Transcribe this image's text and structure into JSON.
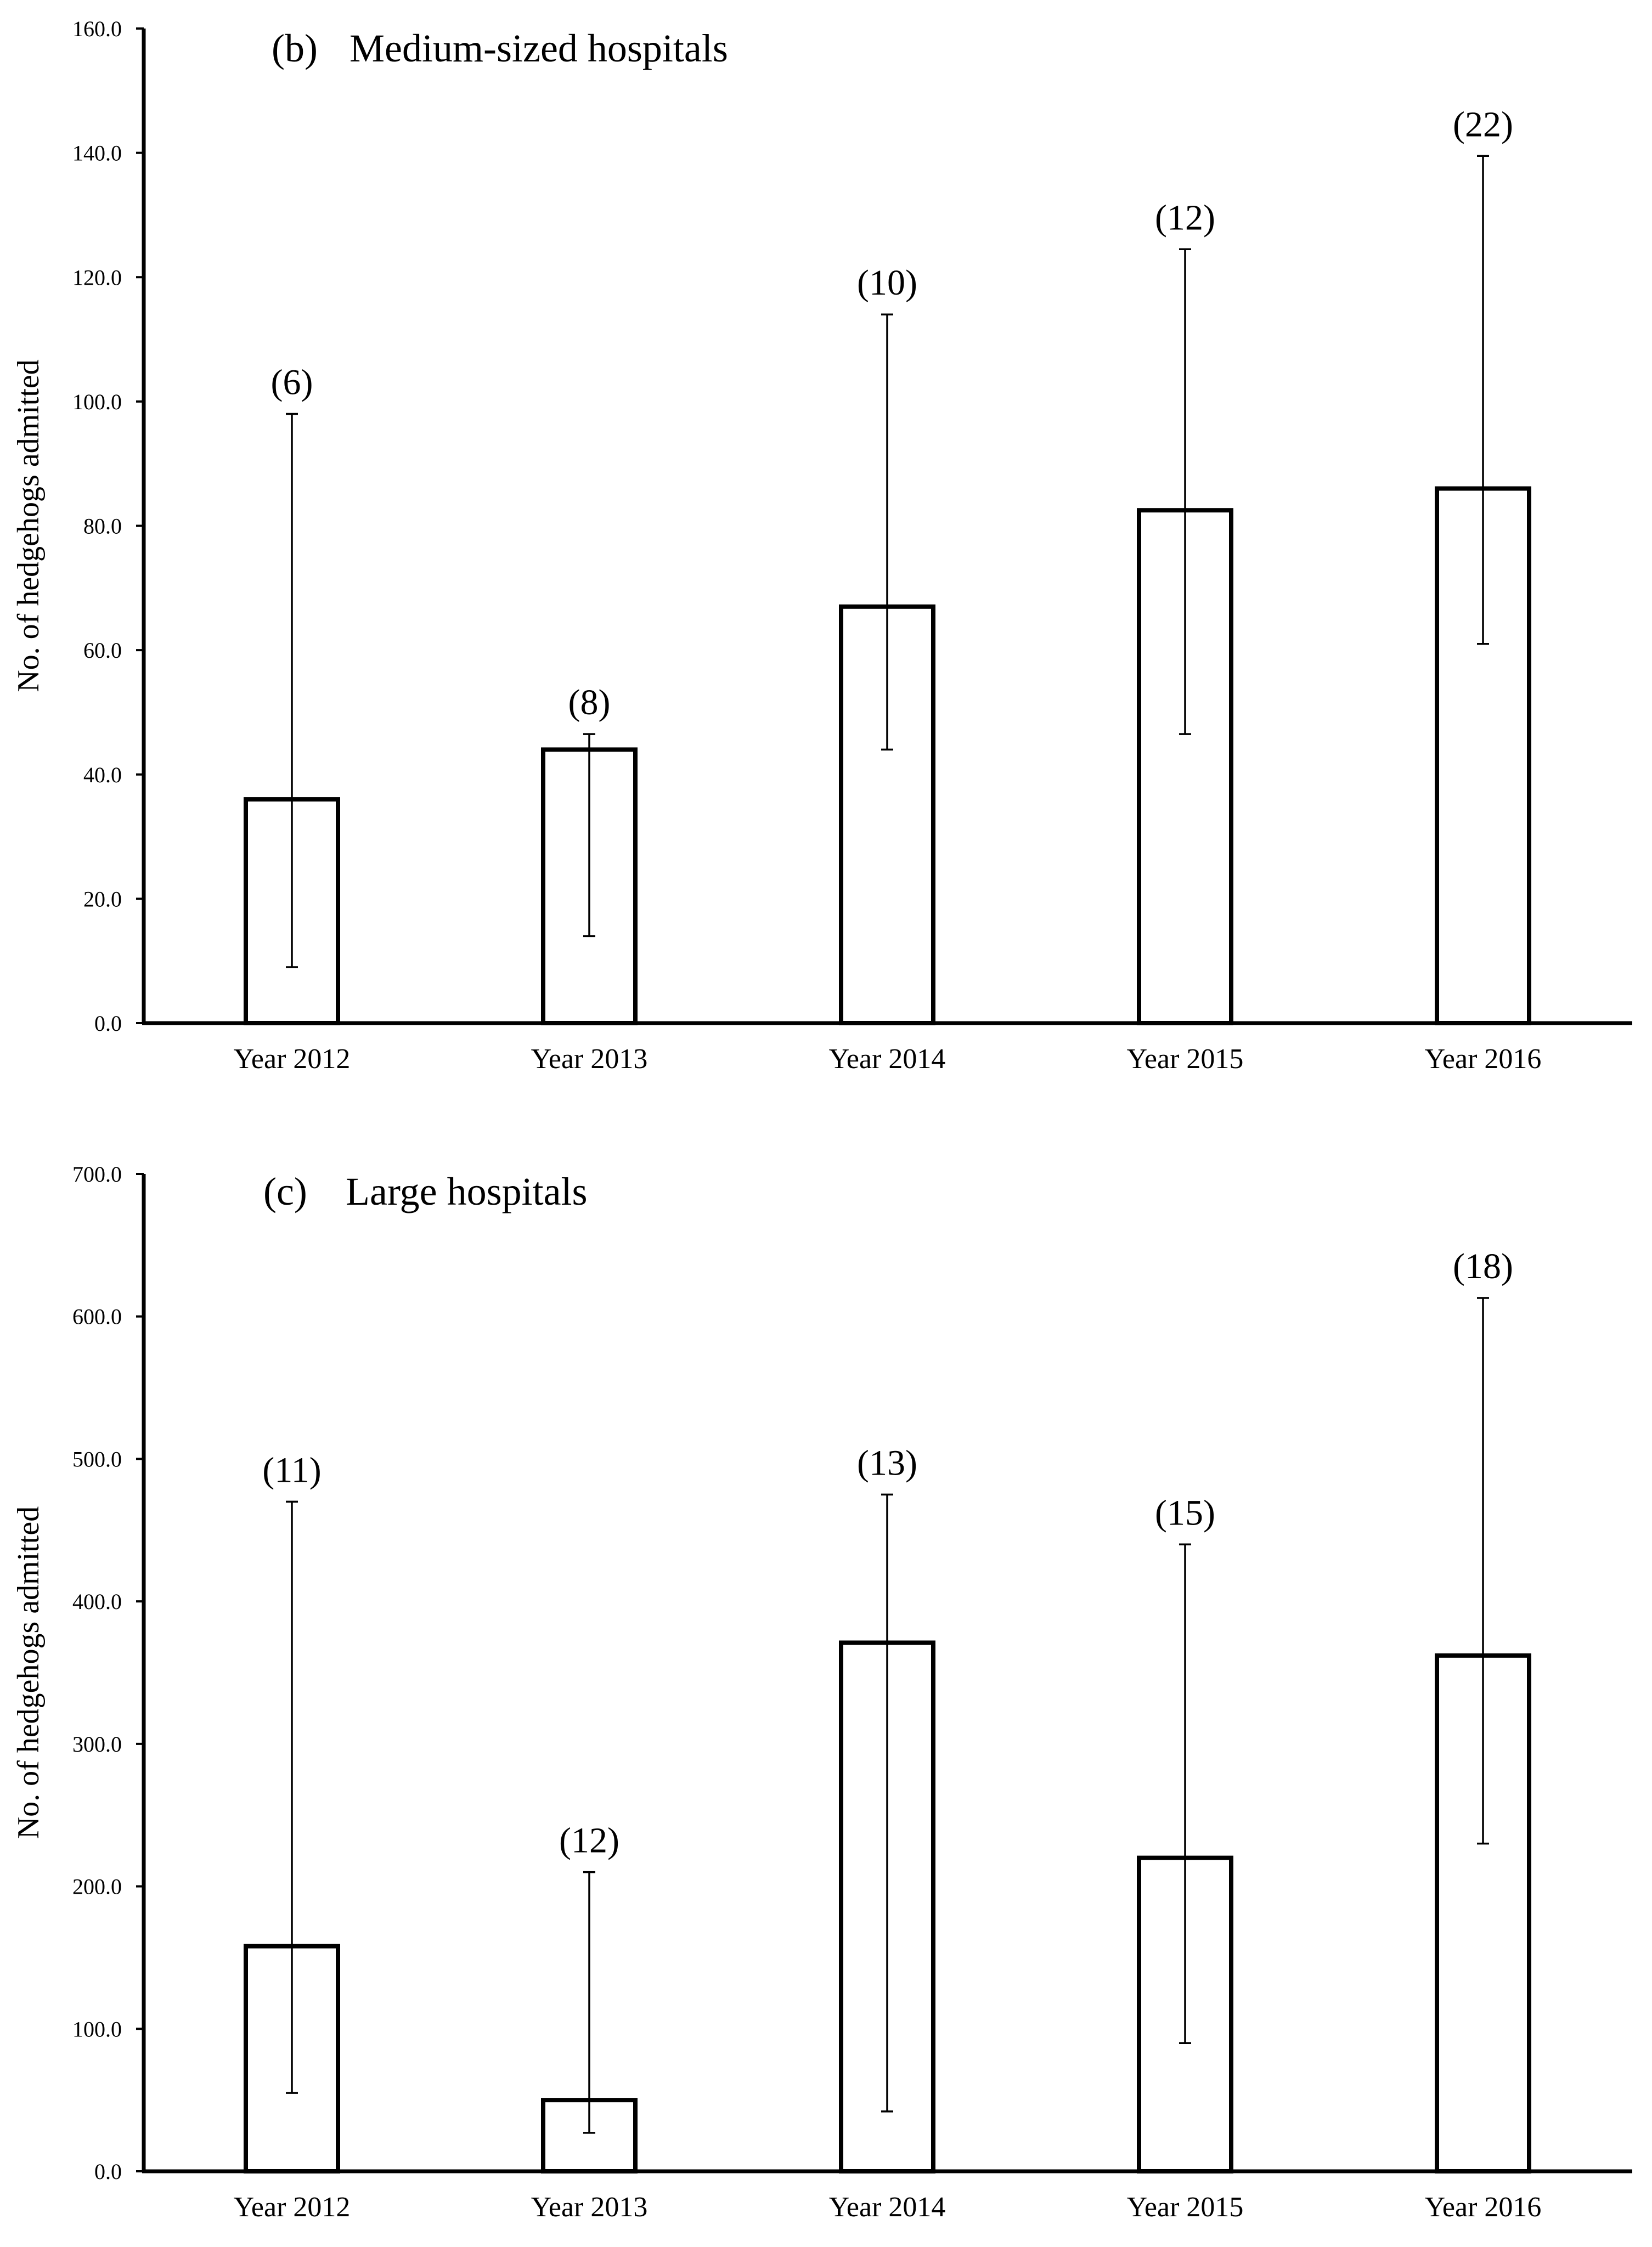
{
  "chart_data": [
    {
      "type": "bar",
      "panel": "(b)",
      "title": "Medium-sized hospitals",
      "xlabel": "",
      "ylabel": "No. of hedgehogs admitted",
      "ylim": [
        0,
        160
      ],
      "yticks": [
        0,
        20,
        40,
        60,
        80,
        100,
        120,
        140,
        160
      ],
      "ytick_labels": [
        "0.0",
        "20.0",
        "40.0",
        "60.0",
        "80.0",
        "100.0",
        "120.0",
        "140.0",
        "160.0"
      ],
      "categories": [
        "Year 2012",
        "Year 2013",
        "Year 2014",
        "Year 2015",
        "Year 2016"
      ],
      "values": [
        36,
        44,
        67,
        82.5,
        86
      ],
      "error_low": [
        9,
        14,
        44,
        46.5,
        61
      ],
      "error_high": [
        98,
        46.5,
        114,
        124.5,
        139.5
      ],
      "n_labels": [
        "(6)",
        "(8)",
        "(10)",
        "(12)",
        "(22)"
      ],
      "grid": false
    },
    {
      "type": "bar",
      "panel": "(c)",
      "title": "Large hospitals",
      "xlabel": "",
      "ylabel": "No. of hedgehogs admitted",
      "ylim": [
        0,
        700
      ],
      "yticks": [
        0,
        100,
        200,
        300,
        400,
        500,
        600,
        700
      ],
      "ytick_labels": [
        "0.0",
        "100.0",
        "200.0",
        "300.0",
        "400.0",
        "500.0",
        "600.0",
        "700.0"
      ],
      "categories": [
        "Year 2012",
        "Year 2013",
        "Year 2014",
        "Year 2015",
        "Year 2016"
      ],
      "values": [
        158,
        50,
        371,
        220,
        362
      ],
      "error_low": [
        55,
        27,
        42,
        90,
        230
      ],
      "error_high": [
        470,
        210,
        475,
        440,
        613
      ],
      "n_labels": [
        "(11)",
        "(12)",
        "(13)",
        "(15)",
        "(18)"
      ],
      "grid": false
    }
  ]
}
